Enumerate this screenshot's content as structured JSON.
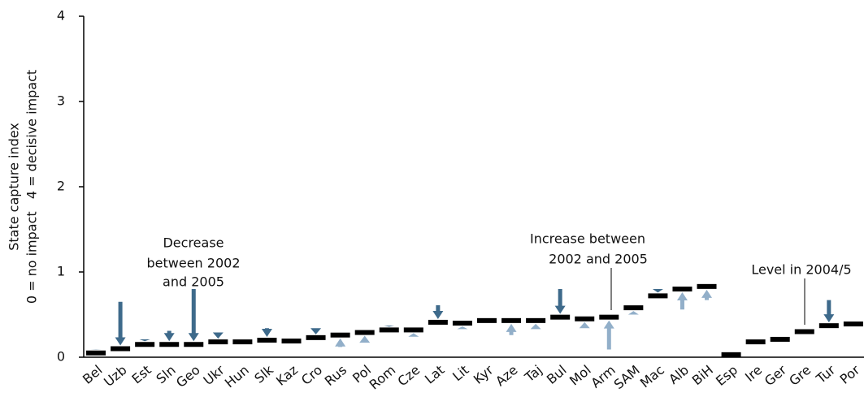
{
  "chart_data": {
    "type": "level-change",
    "y_label": [
      "State capture index",
      "0 = no impact   4 = decisive impact"
    ],
    "categories": [
      "Bel",
      "Uzb",
      "Est",
      "Sln",
      "Geo",
      "Ukr",
      "Hun",
      "Slk",
      "Kaz",
      "Cro",
      "Rus",
      "Pol",
      "Rom",
      "Cze",
      "Lat",
      "Lit",
      "Kyr",
      "Aze",
      "Taj",
      "Bul",
      "Mol",
      "Arm",
      "SAM",
      "Mac",
      "Alb",
      "BiH",
      "Esp",
      "Ire",
      "Ger",
      "Gre",
      "Tur",
      "Por"
    ],
    "series": [
      {
        "name": "Level in 2004/5",
        "color": "#000000",
        "values": [
          0.05,
          0.1,
          0.15,
          0.15,
          0.15,
          0.18,
          0.18,
          0.2,
          0.19,
          0.23,
          0.26,
          0.29,
          0.32,
          0.32,
          0.41,
          0.4,
          0.43,
          0.43,
          0.43,
          0.47,
          0.45,
          0.47,
          0.58,
          0.72,
          0.8,
          0.83,
          0.03,
          0.18,
          0.21,
          0.3,
          0.37,
          0.39
        ]
      },
      {
        "values": [
          0.09,
          0.65,
          0.21,
          0.31,
          0.8,
          0.29,
          null,
          0.34,
          null,
          0.34,
          0.12,
          0.17,
          0.37,
          0.24,
          0.61,
          0.33,
          null,
          0.26,
          0.33,
          0.8,
          0.34,
          0.09,
          0.5,
          0.8,
          0.56,
          0.67,
          null,
          null,
          null,
          null,
          0.67,
          null
        ]
      }
    ],
    "decrease_color": "#3e6a8b",
    "increase_color": "#92afc9",
    "annotations": [
      {
        "lines": [
          "Decrease",
          "between 2002",
          "and 2005"
        ]
      },
      {
        "lines": [
          "Increase between",
          "2002 and 2005"
        ]
      }
    ],
    "ylim": [
      0,
      4
    ],
    "yticks": [
      0,
      1,
      2,
      3,
      4
    ]
  }
}
